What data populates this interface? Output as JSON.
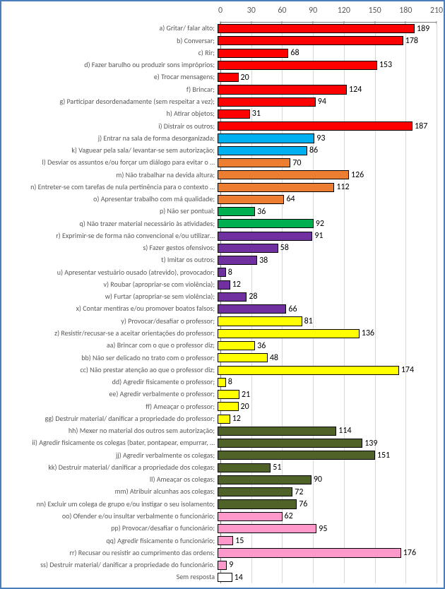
{
  "chart": {
    "type": "bar",
    "orientation": "horizontal",
    "xlim": [
      0,
      210
    ],
    "xtick_step": 30,
    "xticks": [
      0,
      30,
      60,
      90,
      120,
      150,
      180,
      210
    ],
    "axis_fontsize": 12,
    "label_fontsize": 10,
    "value_fontsize": 12,
    "background_color": "#ffffff",
    "grid_color": "#d9d9d9",
    "axis_color": "#808080",
    "border_color": "#4a7ebb",
    "bar_border_color": "#000000",
    "bars": [
      {
        "label": "a) Gritar/ falar alto;",
        "value": 189,
        "color": "#ff0000"
      },
      {
        "label": "b) Conversar;",
        "value": 178,
        "color": "#ff0000"
      },
      {
        "label": "c) Rir;",
        "value": 68,
        "color": "#ff0000"
      },
      {
        "label": "d) Fazer barulho ou produzir sons impróprios;",
        "value": 153,
        "color": "#ff0000"
      },
      {
        "label": "e) Trocar mensagens;",
        "value": 20,
        "color": "#ff0000"
      },
      {
        "label": "f) Brincar;",
        "value": 124,
        "color": "#ff0000"
      },
      {
        "label": "g) Participar desordenadamente (sem respeitar a vez);",
        "value": 94,
        "color": "#ff0000"
      },
      {
        "label": "h) Atirar objetos;",
        "value": 31,
        "color": "#ff0000"
      },
      {
        "label": "i) Distrair os outros;",
        "value": 187,
        "color": "#ff0000"
      },
      {
        "label": "j) Entrar na sala de forma desorganizada;",
        "value": 93,
        "color": "#00b0f0"
      },
      {
        "label": "k) Vaguear pela sala/ levantar-se sem autorização;",
        "value": 86,
        "color": "#00b0f0"
      },
      {
        "label": "l) Desviar os assuntos e/ou forçar um diálogo para evitar o …",
        "value": 70,
        "color": "#ed7d31"
      },
      {
        "label": "m) Não trabalhar na devida altura;",
        "value": 126,
        "color": "#ed7d31"
      },
      {
        "label": "n) Entreter-se com tarefas de nula pertinência para o contexto …",
        "value": 112,
        "color": "#ed7d31"
      },
      {
        "label": "o) Apresentar trabalho com má qualidade;",
        "value": 64,
        "color": "#ed7d31"
      },
      {
        "label": "p) Não ser pontual;",
        "value": 36,
        "color": "#00b050"
      },
      {
        "label": "q) Não trazer material necessário às atividades;",
        "value": 92,
        "color": "#00b050"
      },
      {
        "label": "r) Exprimir-se de forma não convencional e/ou utilizar…",
        "value": 91,
        "color": "#7030a0"
      },
      {
        "label": "s) Fazer gestos ofensivos;",
        "value": 58,
        "color": "#7030a0"
      },
      {
        "label": "t) Imitar os outros;",
        "value": 38,
        "color": "#7030a0"
      },
      {
        "label": "u) Apresentar vestuário ousado (atrevido), provocador;",
        "value": 8,
        "color": "#7030a0"
      },
      {
        "label": "v) Roubar (apropriar-se com violência);",
        "value": 12,
        "color": "#7030a0"
      },
      {
        "label": "w) Furtar (apropriar-se sem violência);",
        "value": 28,
        "color": "#7030a0"
      },
      {
        "label": "x) Contar mentiras e/ou promover boatos falsos;",
        "value": 66,
        "color": "#7030a0"
      },
      {
        "label": "y) Provocar/desafiar o professor;",
        "value": 81,
        "color": "#ffff00"
      },
      {
        "label": "z) Resistir/recusar-se a aceitar orientações do professor;",
        "value": 136,
        "color": "#ffff00"
      },
      {
        "label": "aa) Brincar com o que o professor diz;",
        "value": 36,
        "color": "#ffff00"
      },
      {
        "label": "bb) Não ser delicado no trato com o professor;",
        "value": 48,
        "color": "#ffff00"
      },
      {
        "label": "cc) Não prestar atenção ao que o professor diz;",
        "value": 174,
        "color": "#ffff00"
      },
      {
        "label": "dd) Agredir fisicamente o professor;",
        "value": 8,
        "color": "#ffff00"
      },
      {
        "label": "ee) Agredir verbalmente o professor;",
        "value": 21,
        "color": "#ffff00"
      },
      {
        "label": "ff) Ameaçar o professor;",
        "value": 20,
        "color": "#ffff00"
      },
      {
        "label": "gg) Destruir material/ danificar a propriedade do professor;",
        "value": 12,
        "color": "#ffff00"
      },
      {
        "label": "hh) Mexer no material dos outros sem autorização;",
        "value": 114,
        "color": "#4f6228"
      },
      {
        "label": "ii) Agredir fisicamente os colegas (bater, pontapear, empurrar, …",
        "value": 139,
        "color": "#4f6228"
      },
      {
        "label": "jj) Agredir verbalmente os colegas;",
        "value": 151,
        "color": "#4f6228"
      },
      {
        "label": "kk) Destruir material/ danificar a propriedade dos colegas;",
        "value": 51,
        "color": "#4f6228"
      },
      {
        "label": "ll) Ameaçar os colegas;",
        "value": 90,
        "color": "#4f6228"
      },
      {
        "label": "mm) Atribuir alcunhas aos colegas;",
        "value": 72,
        "color": "#4f6228"
      },
      {
        "label": "nn) Excluir um colega de grupo e/ou instigar o seu isolamento;",
        "value": 76,
        "color": "#4f6228"
      },
      {
        "label": "oo) Ofender e/ou insultar verbalmente o funcionário;",
        "value": 62,
        "color": "#ff99cc"
      },
      {
        "label": "pp) Provocar/desafiar o funcionário;",
        "value": 95,
        "color": "#ff99cc"
      },
      {
        "label": "qq) Agredir fisicamente o funcionário;",
        "value": 15,
        "color": "#ff99cc"
      },
      {
        "label": "rr) Recusar ou resistir ao cumprimento das ordens;",
        "value": 176,
        "color": "#ff99cc"
      },
      {
        "label": "ss) Destruir material/ danificar a propriedade do funcionário.",
        "value": 9,
        "color": "#ff99cc"
      },
      {
        "label": "Sem resposta",
        "value": 14,
        "color": "#ffffff"
      }
    ]
  }
}
